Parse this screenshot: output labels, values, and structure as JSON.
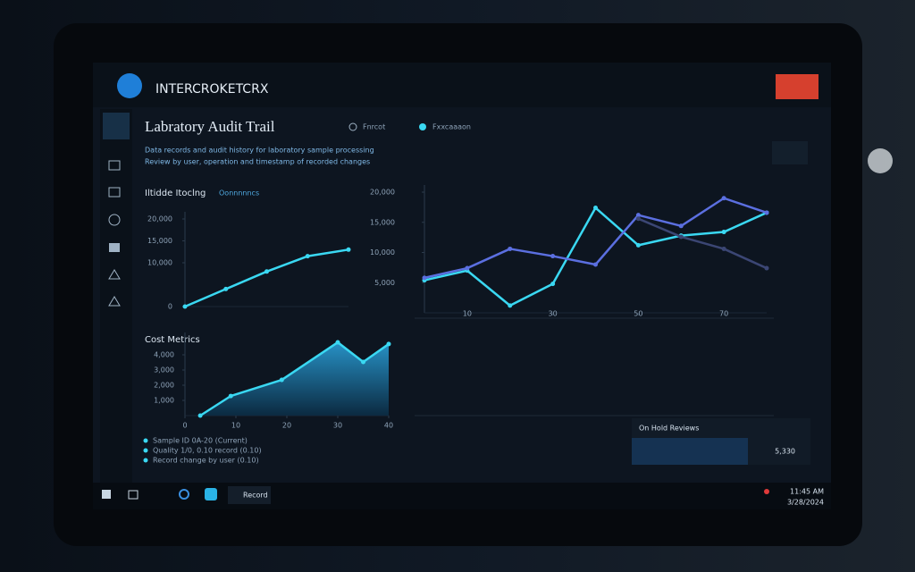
{
  "header": {
    "app_name": "INTERCROKETCRX"
  },
  "page": {
    "title": "Labratory Audit Trail",
    "filter_1": "Fnrcot",
    "filter_2": "Fxxcaaaon",
    "description": [
      "Data records and audit history for laboratory sample processing",
      "Review by user, operation and timestamp of recorded changes"
    ]
  },
  "chart_data": [
    {
      "type": "line",
      "title": "Iltidde Itoclng",
      "subtitle": "Oonnnnncs",
      "color": "#3ad8f2",
      "x": [
        0,
        1,
        2,
        3,
        4
      ],
      "xlim": [
        0,
        4
      ],
      "values": [
        0,
        4000,
        8000,
        11500,
        13000
      ],
      "ylim": [
        0,
        20000
      ],
      "yticks": [
        0,
        {
          "value": 10000,
          "label": "10,000"
        },
        {
          "value": 15000,
          "label": "15,000"
        },
        {
          "value": 20000,
          "label": "20,000"
        }
      ]
    },
    {
      "type": "line",
      "x": [
        0,
        10,
        20,
        30,
        40,
        50,
        60,
        70,
        80
      ],
      "xlim": [
        0,
        80
      ],
      "xticks": [
        10,
        30,
        50,
        70
      ],
      "ylim": [
        0,
        20000
      ],
      "yticks": [
        {
          "value": 5000,
          "label": "5,000"
        },
        {
          "value": 10000,
          "label": "10,000"
        },
        {
          "value": 15000,
          "label": "15,000"
        },
        {
          "value": 20000,
          "label": "20,000"
        }
      ],
      "series": [
        {
          "color": "#3ad8f2",
          "values": [
            5400,
            7000,
            1200,
            4800,
            17400,
            11200,
            12800,
            13400,
            16600
          ]
        },
        {
          "color": "#5b6fe0",
          "values": [
            5800,
            7400,
            10600,
            9400,
            8000,
            16200,
            14400,
            19000,
            16600
          ]
        },
        {
          "color": "#3b4674",
          "values": [
            null,
            null,
            null,
            null,
            null,
            15600,
            12600,
            10600,
            7400
          ]
        }
      ]
    },
    {
      "type": "area",
      "title": "Cost Metrics",
      "color": "#3ad8f2",
      "x": [
        3,
        9,
        19,
        30,
        35,
        40
      ],
      "xlim": [
        0,
        40
      ],
      "xticks": [
        0,
        10,
        20,
        30,
        40
      ],
      "values": [
        0,
        1290,
        2350,
        4820,
        3530,
        4710
      ],
      "ylim": [
        0,
        5000
      ],
      "yticks": [
        {
          "value": 1000,
          "label": "1,000"
        },
        {
          "value": 2000,
          "label": "2,000"
        },
        {
          "value": 3000,
          "label": "3,000"
        },
        {
          "value": 4000,
          "label": "4,000"
        }
      ]
    }
  ],
  "notes": [
    "Sample ID 0A-20 (Current)",
    "Quality 1/0, 0.10 record (0.10)",
    "Record change by user (0.10)"
  ],
  "summary": {
    "label": "On Hold Reviews",
    "value": "5,330"
  },
  "taskbar": {
    "app": "Record",
    "time": "11:45 AM",
    "date": "3/28/2024"
  }
}
